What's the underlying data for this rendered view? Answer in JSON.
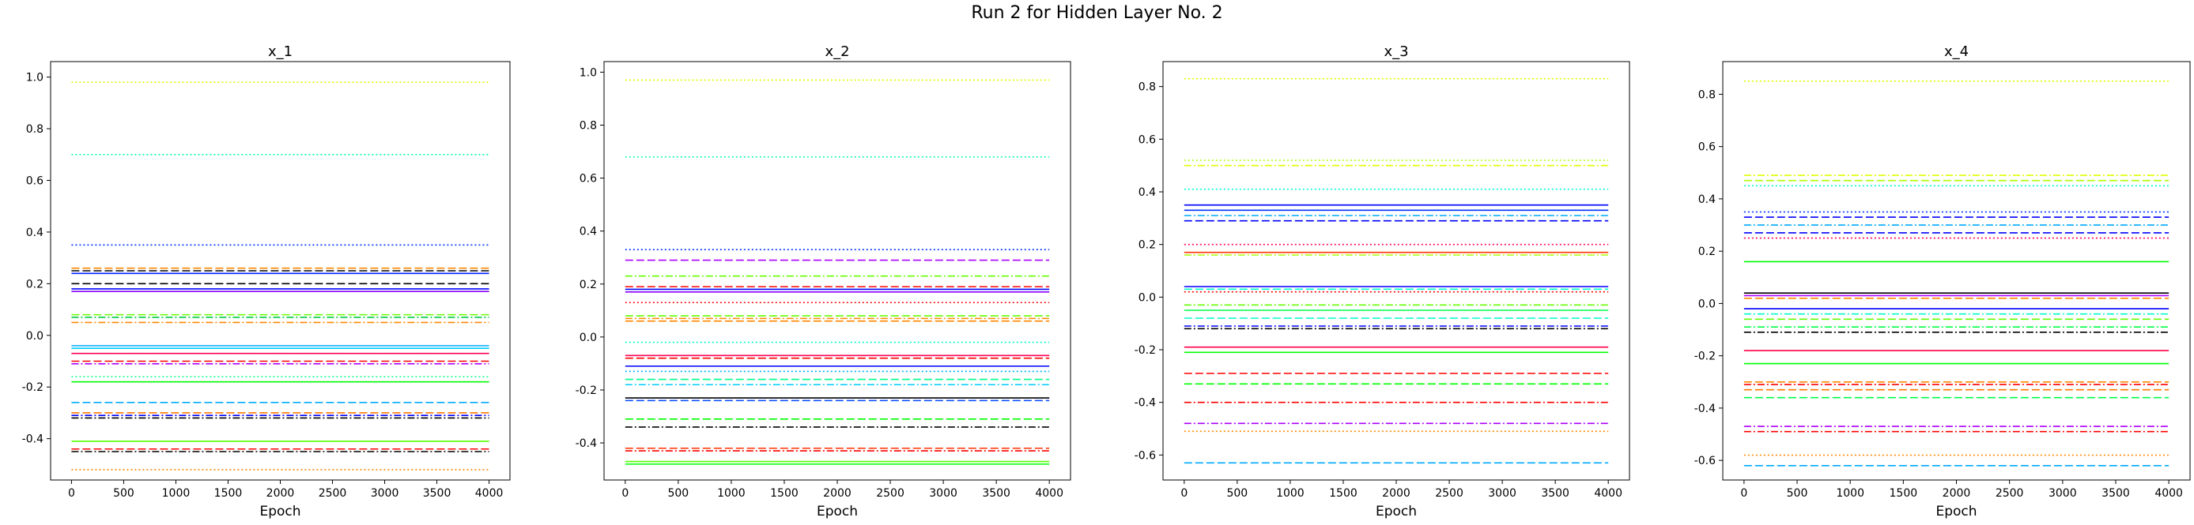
{
  "figure_title": "Run 2 for Hidden Layer No. 2",
  "chart_data": [
    {
      "type": "line",
      "title": "x_1",
      "xlabel": "Epoch",
      "ylabel": "",
      "xlim": [
        -200,
        4200
      ],
      "ylim": [
        -0.56,
        1.06
      ],
      "xticks": [
        0,
        500,
        1000,
        1500,
        2000,
        2500,
        3000,
        3500,
        4000
      ],
      "yticks": [
        -0.4,
        -0.2,
        0.0,
        0.2,
        0.4,
        0.6,
        0.8,
        1.0
      ],
      "x_range": [
        0,
        4000
      ],
      "grid": false,
      "series": [
        {
          "values": [
            0.98
          ],
          "color": "#e0ff00",
          "style": "dotted"
        },
        {
          "values": [
            0.7
          ],
          "color": "#00ffaa",
          "style": "dotted"
        },
        {
          "values": [
            0.35
          ],
          "color": "#0033ff",
          "style": "dotted"
        },
        {
          "values": [
            0.26
          ],
          "color": "#ff8800",
          "style": "dashed"
        },
        {
          "values": [
            0.25
          ],
          "color": "#000000",
          "style": "dashed"
        },
        {
          "values": [
            0.24
          ],
          "color": "#0022ff",
          "style": "solid"
        },
        {
          "values": [
            0.2
          ],
          "color": "#000000",
          "style": "dashed"
        },
        {
          "values": [
            0.18
          ],
          "color": "#0000ff",
          "style": "solid"
        },
        {
          "values": [
            0.17
          ],
          "color": "#8800ff",
          "style": "solid"
        },
        {
          "values": [
            0.08
          ],
          "color": "#66ff00",
          "style": "dashed"
        },
        {
          "values": [
            0.07
          ],
          "color": "#00cc44",
          "style": "dashdot"
        },
        {
          "values": [
            0.05
          ],
          "color": "#ff8800",
          "style": "dashdot"
        },
        {
          "values": [
            -0.04
          ],
          "color": "#00aaff",
          "style": "solid"
        },
        {
          "values": [
            -0.05
          ],
          "color": "#00ccff",
          "style": "solid"
        },
        {
          "values": [
            -0.07
          ],
          "color": "#ff0055",
          "style": "solid"
        },
        {
          "values": [
            -0.1
          ],
          "color": "#ff0000",
          "style": "dashed"
        },
        {
          "values": [
            -0.11
          ],
          "color": "#aa00ff",
          "style": "dashdot"
        },
        {
          "values": [
            -0.16
          ],
          "color": "#00ff88",
          "style": "dotted"
        },
        {
          "values": [
            -0.18
          ],
          "color": "#00ff00",
          "style": "solid"
        },
        {
          "values": [
            -0.26
          ],
          "color": "#00aaff",
          "style": "dashed"
        },
        {
          "values": [
            -0.3
          ],
          "color": "#ff7700",
          "style": "dashed"
        },
        {
          "values": [
            -0.31
          ],
          "color": "#0000ff",
          "style": "dashdot"
        },
        {
          "values": [
            -0.32
          ],
          "color": "#000000",
          "style": "dashdot"
        },
        {
          "values": [
            -0.41
          ],
          "color": "#55ff00",
          "style": "solid"
        },
        {
          "values": [
            -0.44
          ],
          "color": "#ff0000",
          "style": "dashed"
        },
        {
          "values": [
            -0.45
          ],
          "color": "#000000",
          "style": "dashdot"
        },
        {
          "values": [
            -0.52
          ],
          "color": "#ff8800",
          "style": "dotted"
        }
      ]
    },
    {
      "type": "line",
      "title": "x_2",
      "xlabel": "Epoch",
      "ylabel": "",
      "xlim": [
        -200,
        4200
      ],
      "ylim": [
        -0.54,
        1.04
      ],
      "xticks": [
        0,
        500,
        1000,
        1500,
        2000,
        2500,
        3000,
        3500,
        4000
      ],
      "yticks": [
        -0.4,
        -0.2,
        0.0,
        0.2,
        0.4,
        0.6,
        0.8,
        1.0
      ],
      "x_range": [
        0,
        4000
      ],
      "grid": false,
      "series": [
        {
          "values": [
            0.97
          ],
          "color": "#e0ff00",
          "style": "dotted"
        },
        {
          "values": [
            0.68
          ],
          "color": "#00ffaa",
          "style": "dotted"
        },
        {
          "values": [
            0.33
          ],
          "color": "#0033ff",
          "style": "dotted"
        },
        {
          "values": [
            0.29
          ],
          "color": "#aa00ff",
          "style": "dashed"
        },
        {
          "values": [
            0.23
          ],
          "color": "#66ff00",
          "style": "dashdot"
        },
        {
          "values": [
            0.19
          ],
          "color": "#ff0000",
          "style": "dashed"
        },
        {
          "values": [
            0.18
          ],
          "color": "#0000ff",
          "style": "solid"
        },
        {
          "values": [
            0.17
          ],
          "color": "#8800ff",
          "style": "solid"
        },
        {
          "values": [
            0.13
          ],
          "color": "#ff0000",
          "style": "dotted"
        },
        {
          "values": [
            0.08
          ],
          "color": "#66ff00",
          "style": "dashed"
        },
        {
          "values": [
            0.07
          ],
          "color": "#ff8800",
          "style": "dashdot"
        },
        {
          "values": [
            0.06
          ],
          "color": "#ff8800",
          "style": "dashed"
        },
        {
          "values": [
            -0.02
          ],
          "color": "#00ffcc",
          "style": "dotted"
        },
        {
          "values": [
            -0.07
          ],
          "color": "#ff0055",
          "style": "solid"
        },
        {
          "values": [
            -0.08
          ],
          "color": "#ff0000",
          "style": "dashed"
        },
        {
          "values": [
            -0.11
          ],
          "color": "#0000ff",
          "style": "solid"
        },
        {
          "values": [
            -0.13
          ],
          "color": "#00aaff",
          "style": "dotted"
        },
        {
          "values": [
            -0.16
          ],
          "color": "#00ff88",
          "style": "dashed"
        },
        {
          "values": [
            -0.18
          ],
          "color": "#00ccff",
          "style": "dashdot"
        },
        {
          "values": [
            -0.23
          ],
          "color": "#000000",
          "style": "solid"
        },
        {
          "values": [
            -0.24
          ],
          "color": "#0044ff",
          "style": "dashed"
        },
        {
          "values": [
            -0.31
          ],
          "color": "#00ff00",
          "style": "dashed"
        },
        {
          "values": [
            -0.34
          ],
          "color": "#000000",
          "style": "dashdot"
        },
        {
          "values": [
            -0.42
          ],
          "color": "#ff3300",
          "style": "dashed"
        },
        {
          "values": [
            -0.43
          ],
          "color": "#ff0000",
          "style": "dashdot"
        },
        {
          "values": [
            -0.47
          ],
          "color": "#55ff00",
          "style": "solid"
        },
        {
          "values": [
            -0.48
          ],
          "color": "#00ff00",
          "style": "solid"
        }
      ]
    },
    {
      "type": "line",
      "title": "x_3",
      "xlabel": "Epoch",
      "ylabel": "",
      "xlim": [
        -200,
        4200
      ],
      "ylim": [
        -0.695,
        0.895
      ],
      "xticks": [
        0,
        500,
        1000,
        1500,
        2000,
        2500,
        3000,
        3500,
        4000
      ],
      "yticks": [
        -0.6,
        -0.4,
        -0.2,
        0.0,
        0.2,
        0.4,
        0.6,
        0.8
      ],
      "x_range": [
        0,
        4000
      ],
      "grid": false,
      "series": [
        {
          "values": [
            0.83
          ],
          "color": "#e0ff00",
          "style": "dotted"
        },
        {
          "values": [
            0.52
          ],
          "color": "#aaff00",
          "style": "dotted"
        },
        {
          "values": [
            0.5
          ],
          "color": "#e0ff00",
          "style": "dashdot"
        },
        {
          "values": [
            0.41
          ],
          "color": "#00ffcc",
          "style": "dotted"
        },
        {
          "values": [
            0.35
          ],
          "color": "#0000ff",
          "style": "solid"
        },
        {
          "values": [
            0.33
          ],
          "color": "#0033ff",
          "style": "solid"
        },
        {
          "values": [
            0.31
          ],
          "color": "#00aaff",
          "style": "dashdot"
        },
        {
          "values": [
            0.29
          ],
          "color": "#0000ff",
          "style": "dashed"
        },
        {
          "values": [
            0.2
          ],
          "color": "#ff0055",
          "style": "dotted"
        },
        {
          "values": [
            0.17
          ],
          "color": "#ff3300",
          "style": "solid"
        },
        {
          "values": [
            0.16
          ],
          "color": "#aaff00",
          "style": "dashdot"
        },
        {
          "values": [
            0.04
          ],
          "color": "#0000ff",
          "style": "solid"
        },
        {
          "values": [
            0.03
          ],
          "color": "#00ffcc",
          "style": "dashed"
        },
        {
          "values": [
            0.02
          ],
          "color": "#ff0000",
          "style": "dotted"
        },
        {
          "values": [
            -0.03
          ],
          "color": "#66ff00",
          "style": "dashdot"
        },
        {
          "values": [
            -0.05
          ],
          "color": "#00ff44",
          "style": "solid"
        },
        {
          "values": [
            -0.08
          ],
          "color": "#00ffcc",
          "style": "dashed"
        },
        {
          "values": [
            -0.11
          ],
          "color": "#0000ff",
          "style": "dashdot"
        },
        {
          "values": [
            -0.12
          ],
          "color": "#000000",
          "style": "dashdot"
        },
        {
          "values": [
            -0.19
          ],
          "color": "#ff0044",
          "style": "solid"
        },
        {
          "values": [
            -0.21
          ],
          "color": "#00ff00",
          "style": "solid"
        },
        {
          "values": [
            -0.29
          ],
          "color": "#ff0000",
          "style": "dashed"
        },
        {
          "values": [
            -0.33
          ],
          "color": "#00ff00",
          "style": "dashed"
        },
        {
          "values": [
            -0.4
          ],
          "color": "#ff0000",
          "style": "dashdot"
        },
        {
          "values": [
            -0.48
          ],
          "color": "#aa00ff",
          "style": "dashdot"
        },
        {
          "values": [
            -0.51
          ],
          "color": "#ff8800",
          "style": "dotted"
        },
        {
          "values": [
            -0.63
          ],
          "color": "#00aaff",
          "style": "dashed"
        }
      ]
    },
    {
      "type": "line",
      "title": "x_4",
      "xlabel": "Epoch",
      "ylabel": "",
      "xlim": [
        -200,
        4200
      ],
      "ylim": [
        -0.675,
        0.925
      ],
      "xticks": [
        0,
        500,
        1000,
        1500,
        2000,
        2500,
        3000,
        3500,
        4000
      ],
      "yticks": [
        -0.6,
        -0.4,
        -0.2,
        0.0,
        0.2,
        0.4,
        0.6,
        0.8
      ],
      "x_range": [
        0,
        4000
      ],
      "grid": false,
      "series": [
        {
          "values": [
            0.85
          ],
          "color": "#e0ff00",
          "style": "dotted"
        },
        {
          "values": [
            0.49
          ],
          "color": "#e0ff00",
          "style": "dashdot"
        },
        {
          "values": [
            0.47
          ],
          "color": "#aaff00",
          "style": "dashed"
        },
        {
          "values": [
            0.45
          ],
          "color": "#00ffcc",
          "style": "dotted"
        },
        {
          "values": [
            0.35
          ],
          "color": "#0033ff",
          "style": "dotted"
        },
        {
          "values": [
            0.33
          ],
          "color": "#0000ff",
          "style": "dashed"
        },
        {
          "values": [
            0.3
          ],
          "color": "#00aaff",
          "style": "dashdot"
        },
        {
          "values": [
            0.27
          ],
          "color": "#0000ff",
          "style": "dashed"
        },
        {
          "values": [
            0.25
          ],
          "color": "#ff0055",
          "style": "dotted"
        },
        {
          "values": [
            0.16
          ],
          "color": "#00ff00",
          "style": "solid"
        },
        {
          "values": [
            0.04
          ],
          "color": "#000000",
          "style": "solid"
        },
        {
          "values": [
            0.03
          ],
          "color": "#aa00ff",
          "style": "solid"
        },
        {
          "values": [
            0.02
          ],
          "color": "#ff8800",
          "style": "dashed"
        },
        {
          "values": [
            -0.02
          ],
          "color": "#0000ff",
          "style": "solid"
        },
        {
          "values": [
            -0.04
          ],
          "color": "#00ffcc",
          "style": "dashdot"
        },
        {
          "values": [
            -0.06
          ],
          "color": "#66ff00",
          "style": "dashed"
        },
        {
          "values": [
            -0.09
          ],
          "color": "#00ff44",
          "style": "dashdot"
        },
        {
          "values": [
            -0.11
          ],
          "color": "#000000",
          "style": "dashdot"
        },
        {
          "values": [
            -0.18
          ],
          "color": "#ff0044",
          "style": "solid"
        },
        {
          "values": [
            -0.23
          ],
          "color": "#00ff00",
          "style": "solid"
        },
        {
          "values": [
            -0.3
          ],
          "color": "#ff8800",
          "style": "dashed"
        },
        {
          "values": [
            -0.31
          ],
          "color": "#ff0000",
          "style": "dashdot"
        },
        {
          "values": [
            -0.33
          ],
          "color": "#ff7700",
          "style": "dashed"
        },
        {
          "values": [
            -0.36
          ],
          "color": "#00ff44",
          "style": "dashed"
        },
        {
          "values": [
            -0.47
          ],
          "color": "#aa00ff",
          "style": "dashdot"
        },
        {
          "values": [
            -0.49
          ],
          "color": "#ff0000",
          "style": "dashdot"
        },
        {
          "values": [
            -0.58
          ],
          "color": "#ff8800",
          "style": "dotted"
        },
        {
          "values": [
            -0.62
          ],
          "color": "#00aaff",
          "style": "dashed"
        }
      ]
    }
  ]
}
